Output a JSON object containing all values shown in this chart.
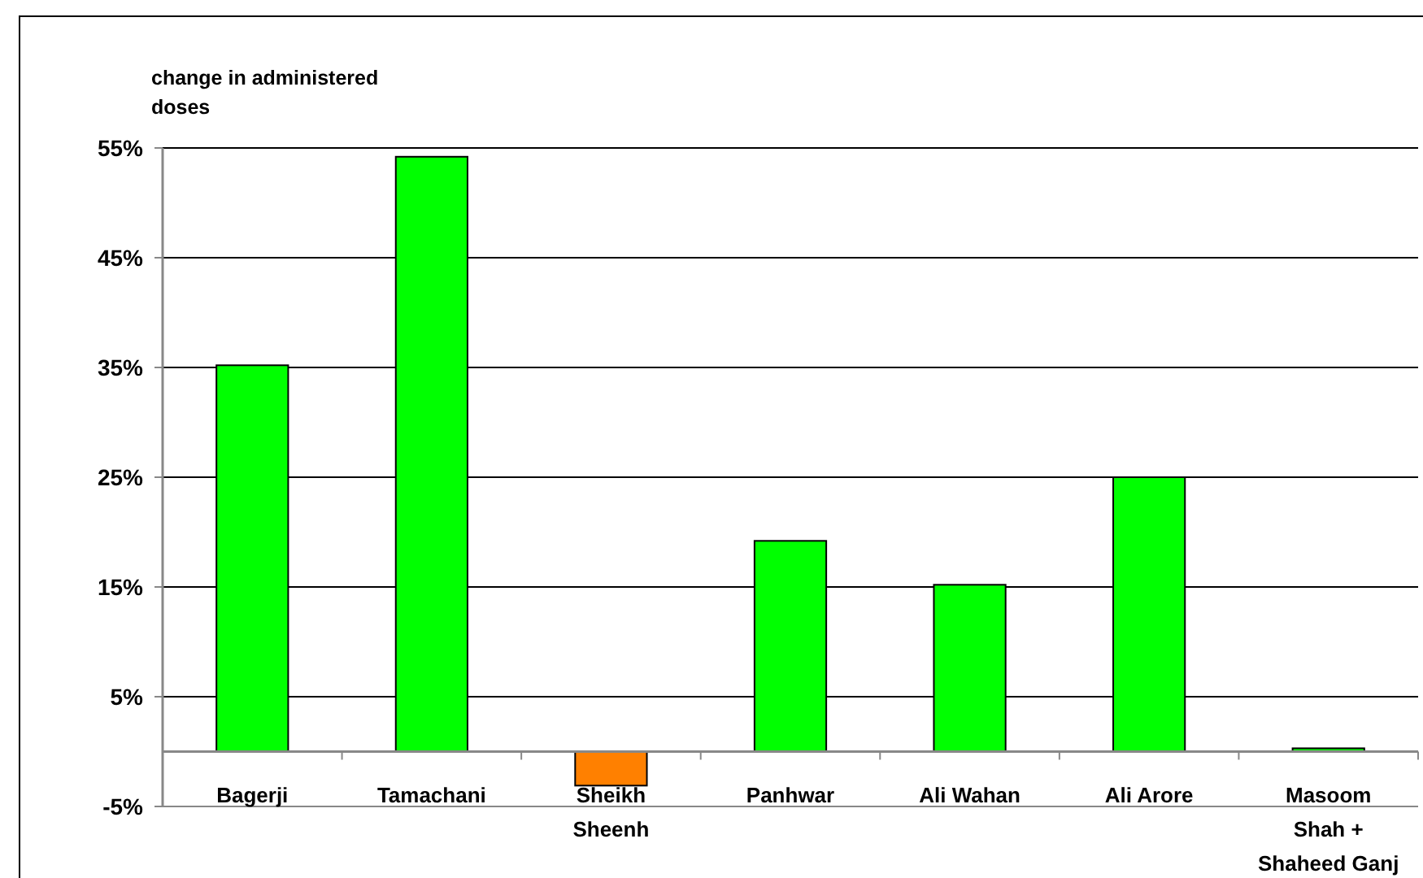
{
  "chart_data": {
    "type": "bar",
    "ylabel": "change in administered doses",
    "categories": [
      "Bagerji",
      "Tamachani",
      "Sheikh Sheenh",
      "Panhwar",
      "Ali Wahan",
      "Ali Arore",
      "Masoom Shah + Shaheed Ganj"
    ],
    "values": [
      35.2,
      54.2,
      -3.1,
      19.2,
      15.2,
      25.0,
      0.3
    ],
    "colors": [
      "#00ff00",
      "#00ff00",
      "#ff8000",
      "#00ff00",
      "#00ff00",
      "#00ff00",
      "#00ff00"
    ],
    "ylim": [
      -5,
      55
    ],
    "yticks": [
      {
        "value": -5,
        "label": "-5%"
      },
      {
        "value": 5,
        "label": "5%"
      },
      {
        "value": 15,
        "label": "15%"
      },
      {
        "value": 25,
        "label": "25%"
      },
      {
        "value": 35,
        "label": "35%"
      },
      {
        "value": 45,
        "label": "45%"
      },
      {
        "value": 55,
        "label": "55%"
      }
    ],
    "grid": "y"
  }
}
